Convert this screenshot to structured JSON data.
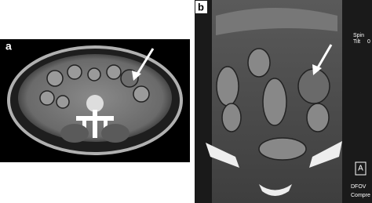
{
  "panels": [
    {
      "label": "a"
    },
    {
      "label": "b",
      "overlay": [
        "Spin",
        "Tilt",
        "0",
        "A",
        "DFOV",
        "Compre"
      ]
    }
  ]
}
